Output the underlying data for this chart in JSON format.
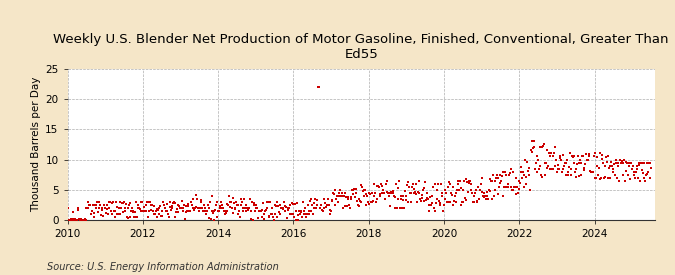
{
  "title": "Weekly U.S. Blender Net Production of Motor Gasoline, Finished, Conventional, Greater Than\nEd55",
  "ylabel": "Thousand Barrels per Day",
  "source": "Source: U.S. Energy Information Administration",
  "figure_bg": "#f5e6c8",
  "plot_bg": "#ffffff",
  "dot_color": "#cc0000",
  "xlim": [
    2010.0,
    2025.6
  ],
  "ylim": [
    0,
    25
  ],
  "yticks": [
    0,
    5,
    10,
    15,
    20,
    25
  ],
  "xticks": [
    2010,
    2012,
    2014,
    2016,
    2018,
    2020,
    2022,
    2024
  ],
  "title_fontsize": 9.5,
  "ylabel_fontsize": 7.5,
  "source_fontsize": 7,
  "tick_fontsize": 7.5
}
